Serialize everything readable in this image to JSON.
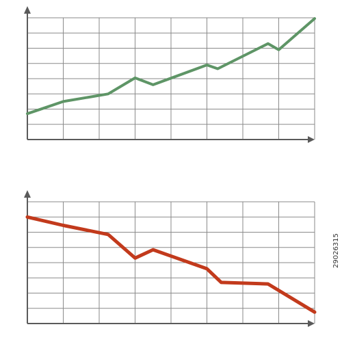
{
  "image_id": "29026315",
  "colors": {
    "grid": "#8a8a8a",
    "axis": "#5a5a5a",
    "up_series": "#5e9566",
    "down_series": "#c23a1c"
  },
  "chart_data": [
    {
      "type": "line",
      "title": "",
      "xlabel": "",
      "ylabel": "",
      "grid": true,
      "xlim": [
        0,
        8
      ],
      "ylim": [
        0,
        8
      ],
      "series": [
        {
          "name": "",
          "color": "#5e9566",
          "x": [
            0,
            0.5,
            1,
            2.25,
            3,
            3.5,
            5,
            5.3,
            6.7,
            7,
            8
          ],
          "y": [
            1.7,
            2.1,
            2.5,
            3.0,
            4.05,
            3.6,
            4.9,
            4.65,
            6.3,
            5.9,
            7.95
          ]
        }
      ]
    },
    {
      "type": "line",
      "title": "",
      "xlabel": "",
      "ylabel": "",
      "grid": true,
      "xlim": [
        0,
        8
      ],
      "ylim": [
        0,
        8
      ],
      "series": [
        {
          "name": "",
          "color": "#c23a1c",
          "x": [
            0,
            1,
            2.25,
            3,
            3.5,
            5,
            5.4,
            6.7,
            8
          ],
          "y": [
            7.0,
            6.45,
            5.85,
            4.3,
            4.85,
            3.6,
            2.7,
            2.6,
            0.75
          ]
        }
      ]
    }
  ]
}
